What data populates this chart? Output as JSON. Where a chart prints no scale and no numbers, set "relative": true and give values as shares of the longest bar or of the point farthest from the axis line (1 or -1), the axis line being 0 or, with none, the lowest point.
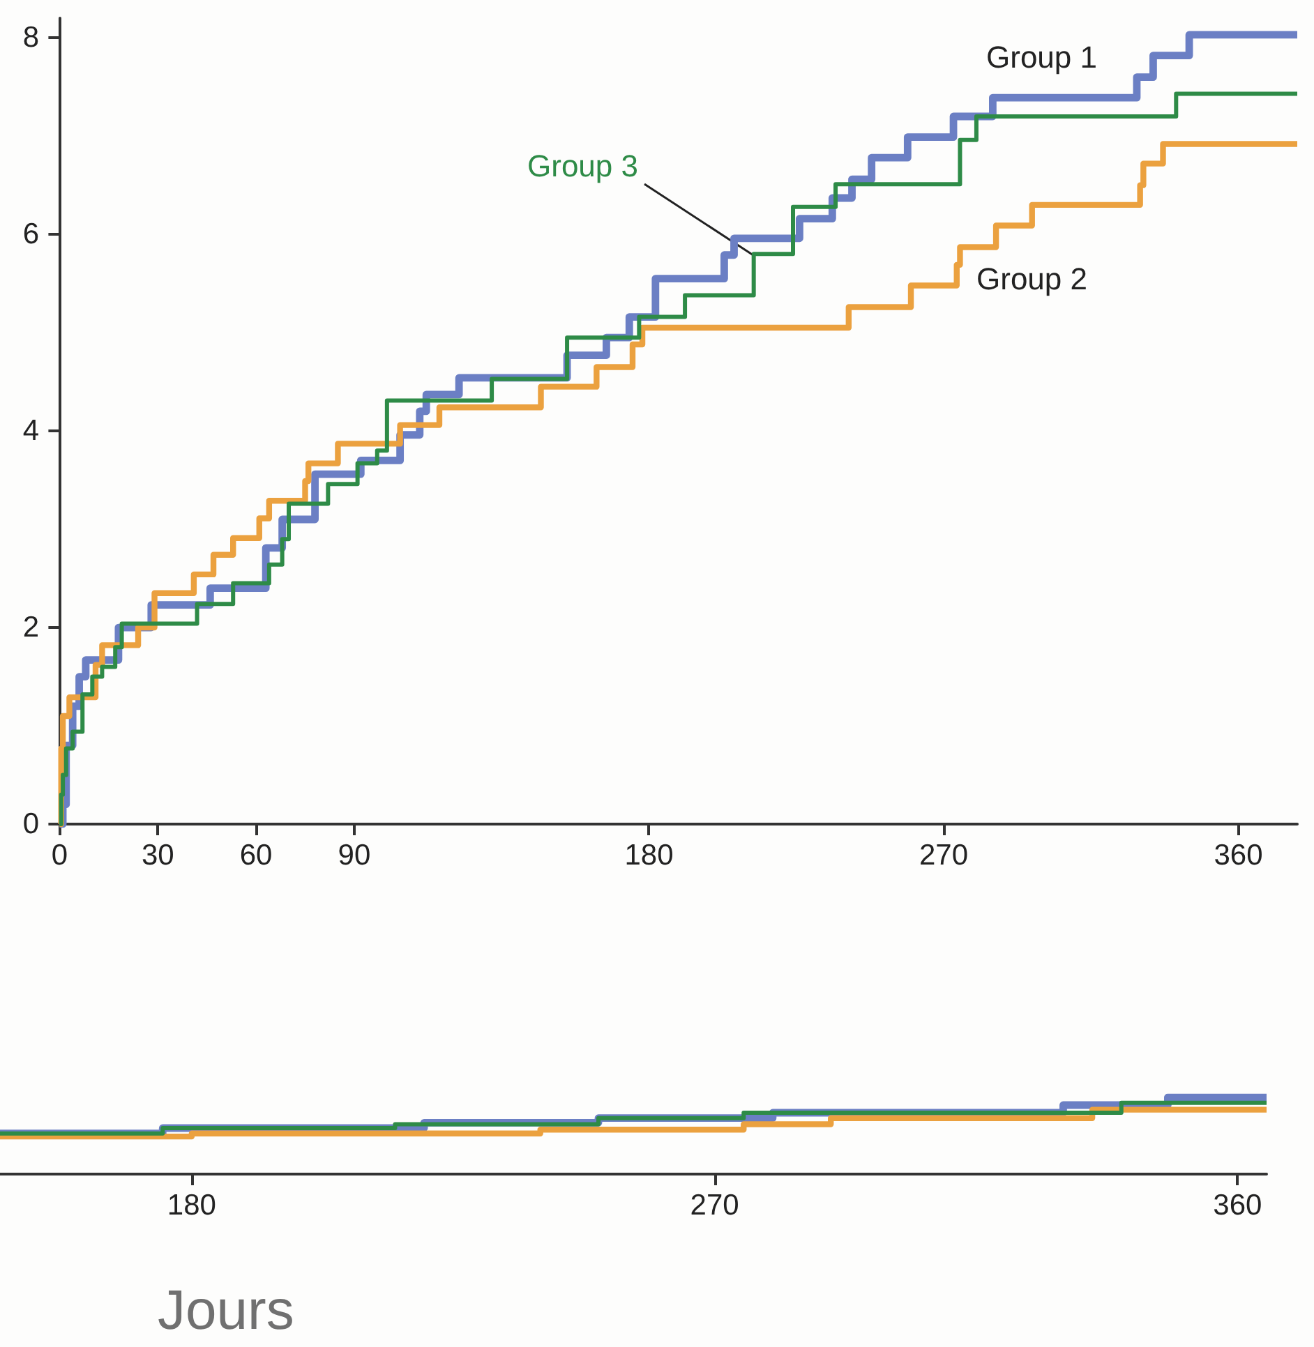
{
  "chart_data": [
    {
      "type": "step",
      "marker": "none",
      "xlim": [
        -2,
        378
      ],
      "xticks": [
        0,
        30,
        60,
        90,
        180,
        270,
        360
      ],
      "ylim": [
        0,
        8.2
      ],
      "yticks": [
        0,
        2,
        4,
        6,
        8
      ],
      "series": [
        {
          "name": "Group 1",
          "color": "#6b7fc4",
          "x": [
            0,
            1,
            2,
            4,
            6,
            8,
            18,
            28,
            46,
            63,
            68,
            78,
            92,
            104,
            110,
            112,
            122,
            155,
            167,
            174,
            182,
            203,
            206,
            226,
            236,
            242,
            248,
            259,
            273,
            285,
            329,
            334,
            345,
            378
          ],
          "values": [
            0,
            0.2,
            0.8,
            1.2,
            1.5,
            1.67,
            2.0,
            2.23,
            2.4,
            2.81,
            3.1,
            3.56,
            3.7,
            3.96,
            4.2,
            4.37,
            4.54,
            4.77,
            4.95,
            5.16,
            5.55,
            5.79,
            5.96,
            6.16,
            6.37,
            6.56,
            6.78,
            6.99,
            7.2,
            7.39,
            7.6,
            7.82,
            8.03,
            8.03
          ]
        },
        {
          "name": "Group 2",
          "color": "#eba13f",
          "x": [
            0,
            0.5,
            1,
            3,
            11,
            13,
            24,
            29,
            41,
            47,
            53,
            61,
            64,
            75,
            76,
            85,
            104,
            116,
            147,
            164,
            175,
            178,
            241,
            260,
            274,
            275,
            286,
            297,
            330,
            331,
            337,
            378
          ],
          "values": [
            0,
            0.77,
            1.1,
            1.29,
            1.62,
            1.82,
            2.0,
            2.35,
            2.54,
            2.74,
            2.91,
            3.11,
            3.29,
            3.49,
            3.67,
            3.87,
            4.06,
            4.24,
            4.45,
            4.65,
            4.88,
            5.05,
            5.26,
            5.48,
            5.69,
            5.87,
            6.09,
            6.3,
            6.5,
            6.72,
            6.92,
            6.92
          ]
        },
        {
          "name": "Group 3",
          "color": "#2e8b47",
          "x": [
            0,
            0.5,
            1,
            2,
            4,
            7,
            10,
            13,
            17,
            19,
            42,
            53,
            64,
            68,
            70,
            82,
            91,
            97,
            100,
            132,
            155,
            177,
            191,
            212,
            224,
            237,
            275,
            280,
            341,
            378
          ],
          "values": [
            0,
            0.3,
            0.5,
            0.77,
            0.94,
            1.32,
            1.5,
            1.6,
            1.8,
            2.04,
            2.24,
            2.45,
            2.64,
            2.9,
            3.26,
            3.46,
            3.67,
            3.8,
            4.31,
            4.53,
            4.95,
            5.16,
            5.38,
            5.8,
            6.28,
            6.51,
            6.96,
            7.2,
            7.43,
            7.43
          ]
        }
      ]
    },
    {
      "type": "step",
      "marker": "none",
      "relative": true,
      "xlabel": "Jours",
      "xlim": [
        147,
        365
      ],
      "xticks": [
        180,
        270,
        360
      ],
      "series": [
        {
          "color": "#6b7fc4",
          "x": [
            147,
            175,
            220,
            250,
            280,
            330,
            348,
            365
          ],
          "values": [
            0.53,
            0.6,
            0.67,
            0.73,
            0.8,
            0.9,
            1.0,
            1.0
          ]
        },
        {
          "color": "#eba13f",
          "x": [
            147,
            180,
            240,
            275,
            290,
            335,
            365
          ],
          "values": [
            0.49,
            0.53,
            0.58,
            0.65,
            0.73,
            0.84,
            0.84
          ]
        },
        {
          "color": "#2e8b47",
          "x": [
            147,
            175,
            215,
            250,
            275,
            340,
            365
          ],
          "values": [
            0.53,
            0.6,
            0.65,
            0.73,
            0.8,
            0.93,
            0.93
          ]
        }
      ]
    }
  ]
}
